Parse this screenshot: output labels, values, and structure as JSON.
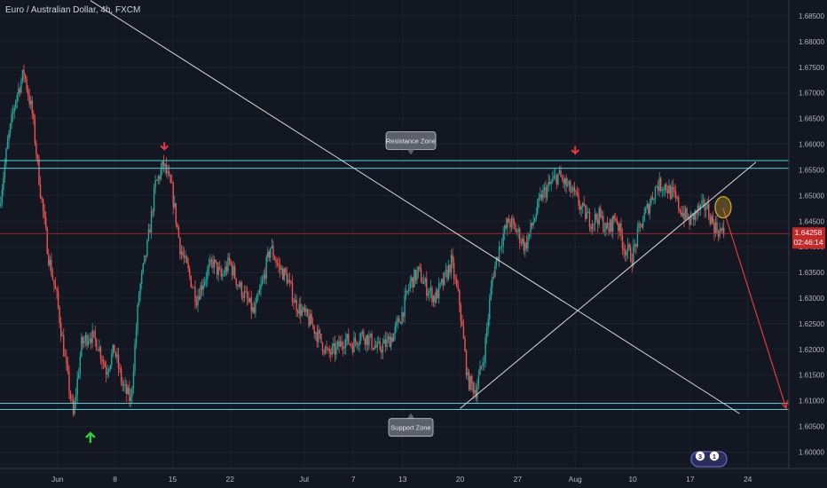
{
  "header": {
    "title": "Euro / Australian Dollar, 4h, FXCM"
  },
  "price_badge": {
    "value": "1.64258",
    "countdown": "02:46:14"
  },
  "annotations": {
    "resistance_label": "Resistance Zone",
    "support_label": "Support Zone"
  },
  "watermark": {
    "badge_a": "3",
    "badge_b": "1"
  },
  "colors": {
    "background": "#131722",
    "up": "#26a69a",
    "down": "#ef5350",
    "zone_line": "#4dd0e1",
    "trendline": "#d9d9d9",
    "projection": "#e53935",
    "price_line": "#c62828",
    "arrow_top": "#f23645",
    "arrow_bottom": "#2fd12f",
    "ellipse": "#d4a72c"
  },
  "chart_data": {
    "type": "candlestick",
    "title": "Euro / Australian Dollar, 4h, FXCM",
    "x_labels": [
      {
        "label": "Jun",
        "date": "2020-06-01"
      },
      {
        "label": "8",
        "date": "2020-06-08"
      },
      {
        "label": "15",
        "date": "2020-06-15"
      },
      {
        "label": "22",
        "date": "2020-06-22"
      },
      {
        "label": "Jul",
        "date": "2020-07-01"
      },
      {
        "label": "7",
        "date": "2020-07-07"
      },
      {
        "label": "13",
        "date": "2020-07-13"
      },
      {
        "label": "20",
        "date": "2020-07-20"
      },
      {
        "label": "27",
        "date": "2020-07-27"
      },
      {
        "label": "Aug",
        "date": "2020-08-03"
      },
      {
        "label": "10",
        "date": "2020-08-10"
      },
      {
        "label": "17",
        "date": "2020-08-17"
      },
      {
        "label": "24",
        "date": "2020-08-24"
      }
    ],
    "y_ticks": [
      "1.60000",
      "1.60500",
      "1.61000",
      "1.61500",
      "1.62000",
      "1.62500",
      "1.63000",
      "1.63500",
      "1.64000",
      "1.64500",
      "1.65000",
      "1.65500",
      "1.66000",
      "1.66500",
      "1.67000",
      "1.67500",
      "1.68000",
      "1.68500"
    ],
    "ylim": [
      1.5968,
      1.6881
    ],
    "xlim": [
      "2020-05-25",
      "2020-08-29"
    ],
    "last_price": 1.64258,
    "price_path": [
      [
        "2020-05-25",
        1.648
      ],
      [
        "2020-05-26",
        1.66
      ],
      [
        "2020-05-27",
        1.669
      ],
      [
        "2020-05-28",
        1.674
      ],
      [
        "2020-05-29",
        1.666
      ],
      [
        "2020-05-30",
        1.651
      ],
      [
        "2020-05-31",
        1.638
      ],
      [
        "2020-06-01",
        1.63
      ],
      [
        "2020-06-02",
        1.618
      ],
      [
        "2020-06-03",
        1.607
      ],
      [
        "2020-06-04",
        1.621
      ],
      [
        "2020-06-05",
        1.623
      ],
      [
        "2020-06-06",
        1.621
      ],
      [
        "2020-06-07",
        1.616
      ],
      [
        "2020-06-08",
        1.62
      ],
      [
        "2020-06-09",
        1.613
      ],
      [
        "2020-06-10",
        1.61
      ],
      [
        "2020-06-11",
        1.631
      ],
      [
        "2020-06-12",
        1.64
      ],
      [
        "2020-06-13",
        1.652
      ],
      [
        "2020-06-14",
        1.656
      ],
      [
        "2020-06-15",
        1.651
      ],
      [
        "2020-06-16",
        1.64
      ],
      [
        "2020-06-17",
        1.635
      ],
      [
        "2020-06-18",
        1.63
      ],
      [
        "2020-06-19",
        1.634
      ],
      [
        "2020-06-20",
        1.637
      ],
      [
        "2020-06-21",
        1.634
      ],
      [
        "2020-06-22",
        1.637
      ],
      [
        "2020-06-23",
        1.633
      ],
      [
        "2020-06-24",
        1.63
      ],
      [
        "2020-06-25",
        1.627
      ],
      [
        "2020-06-26",
        1.633
      ],
      [
        "2020-06-27",
        1.64
      ],
      [
        "2020-06-28",
        1.636
      ],
      [
        "2020-06-29",
        1.634
      ],
      [
        "2020-06-30",
        1.629
      ],
      [
        "2020-07-01",
        1.627
      ],
      [
        "2020-07-02",
        1.625
      ],
      [
        "2020-07-03",
        1.622
      ],
      [
        "2020-07-04",
        1.619
      ],
      [
        "2020-07-05",
        1.62
      ],
      [
        "2020-07-06",
        1.622
      ],
      [
        "2020-07-07",
        1.621
      ],
      [
        "2020-07-08",
        1.623
      ],
      [
        "2020-07-09",
        1.622
      ],
      [
        "2020-07-10",
        1.62
      ],
      [
        "2020-07-11",
        1.621
      ],
      [
        "2020-07-12",
        1.623
      ],
      [
        "2020-07-13",
        1.627
      ],
      [
        "2020-07-14",
        1.633
      ],
      [
        "2020-07-15",
        1.635
      ],
      [
        "2020-07-16",
        1.632
      ],
      [
        "2020-07-17",
        1.63
      ],
      [
        "2020-07-18",
        1.633
      ],
      [
        "2020-07-19",
        1.637
      ],
      [
        "2020-07-20",
        1.629
      ],
      [
        "2020-07-21",
        1.614
      ],
      [
        "2020-07-22",
        1.612
      ],
      [
        "2020-07-23",
        1.619
      ],
      [
        "2020-07-24",
        1.634
      ],
      [
        "2020-07-25",
        1.641
      ],
      [
        "2020-07-26",
        1.645
      ],
      [
        "2020-07-27",
        1.643
      ],
      [
        "2020-07-28",
        1.64
      ],
      [
        "2020-07-29",
        1.645
      ],
      [
        "2020-07-30",
        1.65
      ],
      [
        "2020-07-31",
        1.652
      ],
      [
        "2020-08-01",
        1.654
      ],
      [
        "2020-08-02",
        1.652
      ],
      [
        "2020-08-03",
        1.65
      ],
      [
        "2020-08-04",
        1.647
      ],
      [
        "2020-08-05",
        1.645
      ],
      [
        "2020-08-06",
        1.646
      ],
      [
        "2020-08-07",
        1.643
      ],
      [
        "2020-08-08",
        1.646
      ],
      [
        "2020-08-09",
        1.64
      ],
      [
        "2020-08-10",
        1.638
      ],
      [
        "2020-08-11",
        1.644
      ],
      [
        "2020-08-12",
        1.648
      ],
      [
        "2020-08-13",
        1.652
      ],
      [
        "2020-08-14",
        1.652
      ],
      [
        "2020-08-15",
        1.65
      ],
      [
        "2020-08-16",
        1.647
      ],
      [
        "2020-08-17",
        1.645
      ],
      [
        "2020-08-18",
        1.647
      ],
      [
        "2020-08-19",
        1.648
      ],
      [
        "2020-08-20",
        1.644
      ],
      [
        "2020-08-21",
        1.6426
      ]
    ],
    "resistance_zone": [
      1.6553,
      1.6568
    ],
    "support_zone": [
      1.6083,
      1.6095
    ],
    "price_line": 1.64258,
    "descending_trendline": [
      [
        "2020-06-05",
        1.688
      ],
      [
        "2020-08-23",
        1.6075
      ]
    ],
    "ascending_trendline": [
      [
        "2020-07-20",
        1.6085
      ],
      [
        "2020-08-25",
        1.6565
      ]
    ],
    "projection": [
      [
        "2020-08-21",
        1.6475
      ],
      [
        "2020-08-29",
        1.6085
      ]
    ],
    "ellipse_center": [
      "2020-08-21",
      1.6477
    ],
    "arrows": [
      {
        "date": "2020-06-14",
        "price": 1.659,
        "dir": "down"
      },
      {
        "date": "2020-08-03",
        "price": 1.6582,
        "dir": "down"
      },
      {
        "date": "2020-06-05",
        "price": 1.6037,
        "dir": "up"
      }
    ],
    "callouts": [
      {
        "date": "2020-07-14",
        "price": 1.66,
        "key": "resistance"
      },
      {
        "date": "2020-07-14",
        "price": 1.6055,
        "key": "support"
      }
    ]
  }
}
